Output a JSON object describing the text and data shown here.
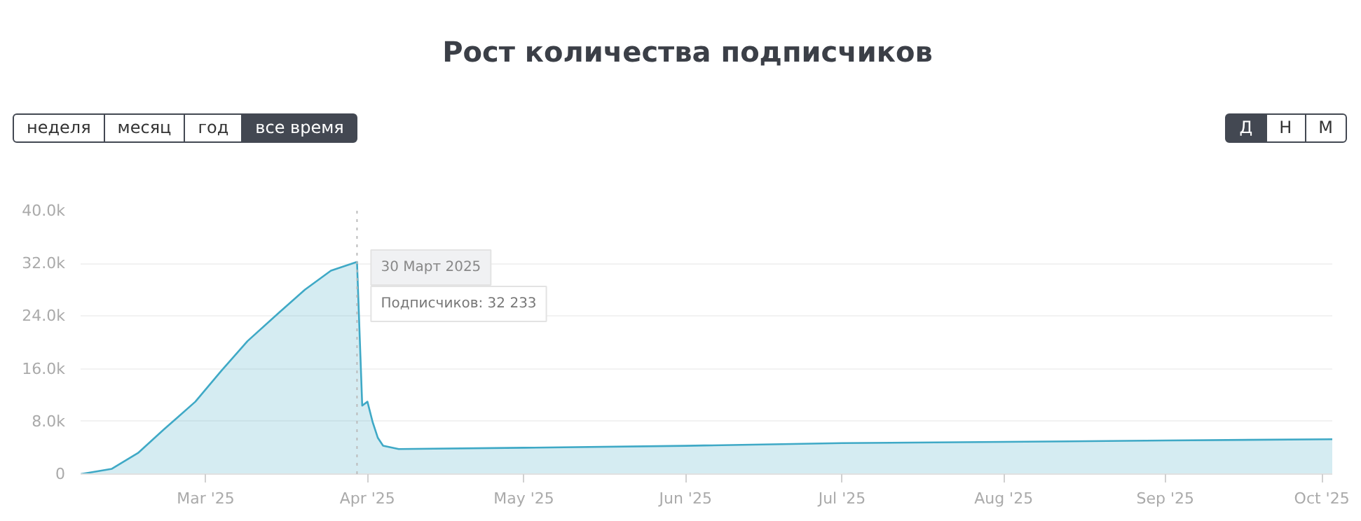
{
  "chart_data": {
    "type": "area",
    "title": "Рост количества подписчиков",
    "x": [
      "2025-02-05",
      "2025-02-11",
      "2025-02-16",
      "2025-02-21",
      "2025-02-27",
      "2025-03-04",
      "2025-03-09",
      "2025-03-15",
      "2025-03-20",
      "2025-03-25",
      "2025-03-30",
      "2025-03-31",
      "2025-04-01",
      "2025-04-02",
      "2025-04-03",
      "2025-04-04",
      "2025-04-07",
      "2025-05-01",
      "2025-06-01",
      "2025-07-01",
      "2025-08-01",
      "2025-09-01",
      "2025-10-03"
    ],
    "series": [
      {
        "color": "#3fa9c6",
        "values": [
          0,
          800,
          3200,
          6800,
          11000,
          15700,
          20200,
          24500,
          28000,
          30900,
          32233,
          10400,
          11000,
          7900,
          5500,
          4300,
          3800,
          4000,
          4300,
          4700,
          4900,
          5100,
          5300
        ]
      }
    ],
    "xlim": [
      "2025-02-05",
      "2025-10-03"
    ],
    "xticks": [
      {
        "value": "2025-03-01",
        "label": "Mar '25"
      },
      {
        "value": "2025-04-01",
        "label": "Apr '25"
      },
      {
        "value": "2025-05-01",
        "label": "May '25"
      },
      {
        "value": "2025-06-01",
        "label": "Jun '25"
      },
      {
        "value": "2025-07-01",
        "label": "Jul '25"
      },
      {
        "value": "2025-08-01",
        "label": "Aug '25"
      },
      {
        "value": "2025-09-01",
        "label": "Sep '25"
      },
      {
        "value": "2025-10-01",
        "label": "Oct '25"
      }
    ],
    "ylim": [
      0,
      40000
    ],
    "yticks": [
      0,
      {
        "value": 8000,
        "label": "8.0k"
      },
      {
        "value": 16000,
        "label": "16.0k"
      },
      {
        "value": 24000,
        "label": "24.0k"
      },
      {
        "value": 32000,
        "label": "32.0k"
      },
      {
        "value": 40000,
        "label": "40.0k"
      }
    ],
    "grid": "y",
    "ref_lines": [
      {
        "axis": "x",
        "value": "2025-03-30",
        "color": "#bbbbbb",
        "line_style": "dotted"
      }
    ],
    "annotations": [
      "неделя",
      "месяц",
      "год",
      "все время",
      "Д",
      "Н",
      "М",
      "Подписчиков: 32 233",
      {
        "text": "30 Март 2025",
        "x": "2025-03-30",
        "y": 32233
      }
    ]
  }
}
